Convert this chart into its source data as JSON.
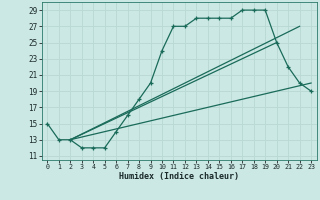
{
  "xlabel": "Humidex (Indice chaleur)",
  "bg_color": "#cce8e4",
  "grid_color": "#b8d8d4",
  "line_color": "#1a6b5a",
  "xlim": [
    -0.5,
    23.5
  ],
  "ylim": [
    10.5,
    30.0
  ],
  "yticks": [
    11,
    13,
    15,
    17,
    19,
    21,
    23,
    25,
    27,
    29
  ],
  "xticks": [
    0,
    1,
    2,
    3,
    4,
    5,
    6,
    7,
    8,
    9,
    10,
    11,
    12,
    13,
    14,
    15,
    16,
    17,
    18,
    19,
    20,
    21,
    22,
    23
  ],
  "main_x": [
    0,
    1,
    2,
    3,
    4,
    5,
    6,
    7,
    8,
    9,
    10,
    11,
    12,
    13,
    14,
    15,
    16,
    17,
    18,
    19,
    20,
    21,
    22,
    23
  ],
  "main_y": [
    15,
    13,
    13,
    12,
    12,
    12,
    14,
    16,
    18,
    20,
    24,
    27,
    27,
    28,
    28,
    28,
    28,
    29,
    29,
    29,
    25,
    22,
    20,
    19
  ],
  "line1_x": [
    2,
    23
  ],
  "line1_y": [
    13,
    20
  ],
  "line2_x": [
    2,
    22
  ],
  "line2_y": [
    13,
    27
  ],
  "line3_x": [
    2,
    20
  ],
  "line3_y": [
    13,
    25
  ]
}
